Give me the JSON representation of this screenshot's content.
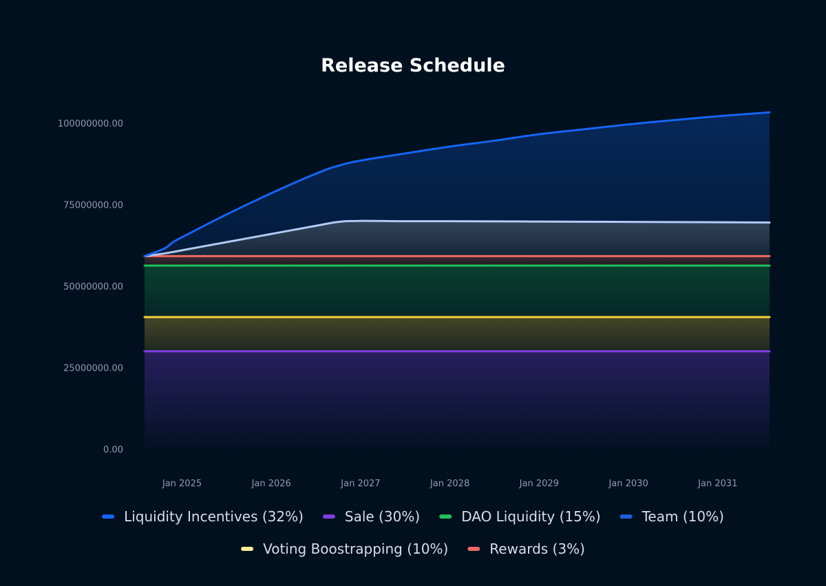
{
  "chart_data": {
    "type": "area",
    "title": "Release Schedule",
    "xlabel": "",
    "ylabel": "",
    "ylim": [
      0,
      104000000
    ],
    "yticks": [
      {
        "value": 0,
        "label": "0.00"
      },
      {
        "value": 25000000,
        "label": "25000000.00"
      },
      {
        "value": 50000000,
        "label": "50000000.00"
      },
      {
        "value": 75000000,
        "label": "75000000.00"
      },
      {
        "value": 100000000,
        "label": "100000000.00"
      }
    ],
    "xlim": [
      2024.58,
      2031.58
    ],
    "xticks": [
      {
        "value": 2025.0,
        "label": "Jan 2025"
      },
      {
        "value": 2026.0,
        "label": "Jan 2026"
      },
      {
        "value": 2027.0,
        "label": "Jan 2027"
      },
      {
        "value": 2028.0,
        "label": "Jan 2028"
      },
      {
        "value": 2029.0,
        "label": "Jan 2029"
      },
      {
        "value": 2030.0,
        "label": "Jan 2030"
      },
      {
        "value": 2031.0,
        "label": "Jan 2031"
      }
    ],
    "grid": false,
    "legend_position": "bottom",
    "series": [
      {
        "name": "Sale (30%)",
        "color": "#7b3fe4",
        "x": [
          2024.58,
          2031.58
        ],
        "values": [
          30000000,
          30000000
        ]
      },
      {
        "name": "Voting Boostrapping (10%)",
        "color": "#f5d33a",
        "legend_color": "#fcef92",
        "x": [
          2024.58,
          2031.58
        ],
        "values": [
          40500000,
          40500000
        ]
      },
      {
        "name": "DAO Liquidity (15%)",
        "color": "#1fc158",
        "x": [
          2024.58,
          2031.58
        ],
        "values": [
          56300000,
          56300000
        ]
      },
      {
        "name": "Rewards (3%)",
        "color": "#ea6a63",
        "x": [
          2024.58,
          2031.58
        ],
        "values": [
          59200000,
          59200000
        ]
      },
      {
        "name": "Team (10%)",
        "color": "#b2cbf5",
        "legend_color": "#1d5fe0",
        "x": [
          2024.58,
          2024.8,
          2025.0,
          2025.5,
          2026.0,
          2026.5,
          2026.75,
          2027.0,
          2027.5,
          2028.0,
          2029.0,
          2030.0,
          2031.0,
          2031.58
        ],
        "values": [
          59200000,
          60000000,
          61000000,
          63500000,
          66000000,
          68500000,
          69700000,
          70000000,
          69900000,
          69900000,
          69800000,
          69700000,
          69600000,
          69500000
        ]
      },
      {
        "name": "Liquidity Incentives (32%)",
        "color": "#1565f5",
        "x": [
          2024.58,
          2024.8,
          2024.9,
          2025.0,
          2025.5,
          2026.0,
          2026.5,
          2026.75,
          2027.0,
          2027.5,
          2028.0,
          2028.5,
          2029.0,
          2029.5,
          2030.0,
          2030.5,
          2031.0,
          2031.58
        ],
        "values": [
          59200000,
          61500000,
          63500000,
          65000000,
          72000000,
          78500000,
          84500000,
          86900000,
          88500000,
          90700000,
          92800000,
          94600000,
          96600000,
          98100000,
          99600000,
          100900000,
          102100000,
          103300000
        ]
      }
    ],
    "legend": [
      {
        "name": "Liquidity Incentives (32%)",
        "color": "#1565f5"
      },
      {
        "name": "Sale (30%)",
        "color": "#7b3fe4"
      },
      {
        "name": "DAO Liquidity (15%)",
        "color": "#1fc158"
      },
      {
        "name": "Team (10%)",
        "color": "#1d5fe0"
      },
      {
        "name": "Voting Boostrapping (10%)",
        "color": "#fcef92"
      },
      {
        "name": "Rewards (3%)",
        "color": "#ea6a63"
      }
    ]
  }
}
